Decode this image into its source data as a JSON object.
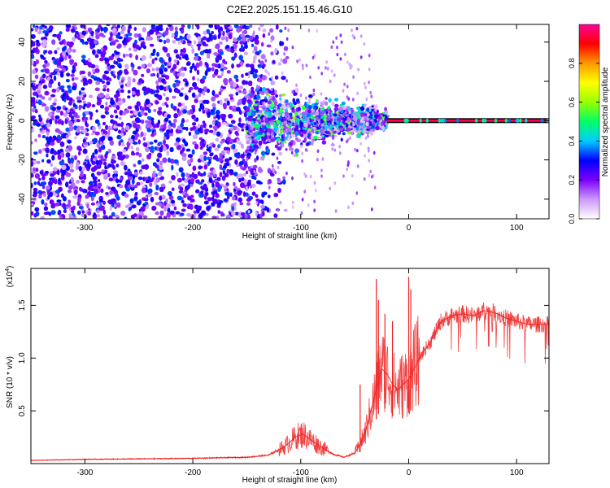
{
  "title": "C2E2.2025.151.15.46.G10",
  "chart_data": [
    {
      "type": "heatmap",
      "xlabel": "Height of straight line (km)",
      "ylabel": "Frequency (Hz)",
      "xlim": [
        -350,
        130
      ],
      "ylim": [
        -50,
        49
      ],
      "xticks": [
        -300,
        -200,
        -100,
        0,
        100
      ],
      "yticks": [
        -40,
        -20,
        0,
        20,
        40
      ],
      "colorbar": {
        "label": "Normalized spectral amplitude",
        "range": [
          0,
          1
        ],
        "ticks": [
          "0.0",
          "0.2",
          "0.4",
          "0.6",
          "0.8"
        ],
        "colors": [
          "#ffffff",
          "#cc99ff",
          "#7a00ff",
          "#0000ff",
          "#00ccff",
          "#00ff66",
          "#99ff00",
          "#ffff00",
          "#ff9900",
          "#ff0000",
          "#ff0099"
        ]
      },
      "features": {
        "carrier_line": {
          "x_start": -20,
          "x_end": 130,
          "frequency": 0,
          "amplitude": 0.95
        },
        "noise_region": {
          "x_start": -350,
          "x_end": -150,
          "freq_range": [
            -50,
            49
          ],
          "amplitude": 0.3
        },
        "transition_cluster": {
          "x_start": -150,
          "x_end": -20,
          "center_freq": 0,
          "spread_hz": 12,
          "amplitude": 0.5
        }
      }
    },
    {
      "type": "line",
      "xlabel": "Height of straight line (km)",
      "ylabel": "SNR (10 * v/v)",
      "yscale_label": "(x10",
      "yscale_exponent": "4",
      "yscale_close": ")",
      "xlim": [
        -350,
        130
      ],
      "ylim": [
        0,
        18500
      ],
      "xticks": [
        -300,
        -200,
        -100,
        0,
        100
      ],
      "yticks": [
        "0.5",
        "1.0",
        "1.5"
      ],
      "ytick_values": [
        5000,
        10000,
        15000
      ],
      "series_color": "#ee2222",
      "x": [
        -350,
        -300,
        -250,
        -200,
        -150,
        -130,
        -115,
        -105,
        -98,
        -90,
        -80,
        -70,
        -60,
        -50,
        -45,
        -40,
        -35,
        -30,
        -25,
        -20,
        -15,
        -10,
        -5,
        0,
        5,
        10,
        15,
        20,
        25,
        30,
        40,
        50,
        60,
        70,
        80,
        90,
        100,
        110,
        120,
        130
      ],
      "y": [
        300,
        400,
        450,
        500,
        600,
        800,
        1600,
        2500,
        2800,
        2200,
        1500,
        900,
        600,
        1000,
        1800,
        3000,
        5000,
        7000,
        9000,
        8500,
        7500,
        7000,
        7500,
        8000,
        9000,
        10000,
        10800,
        11500,
        12500,
        13500,
        14000,
        14200,
        14000,
        14500,
        14300,
        13800,
        13500,
        13200,
        13200,
        13200
      ],
      "spikes": [
        {
          "x": -30,
          "y": 17500
        },
        {
          "x": -28,
          "y": 15500
        },
        {
          "x": -22,
          "y": 14200
        },
        {
          "x": -15,
          "y": 13500
        },
        {
          "x": 0,
          "y": 17700
        },
        {
          "x": 2,
          "y": 16500
        },
        {
          "x": -45,
          "y": 7500
        }
      ]
    }
  ]
}
